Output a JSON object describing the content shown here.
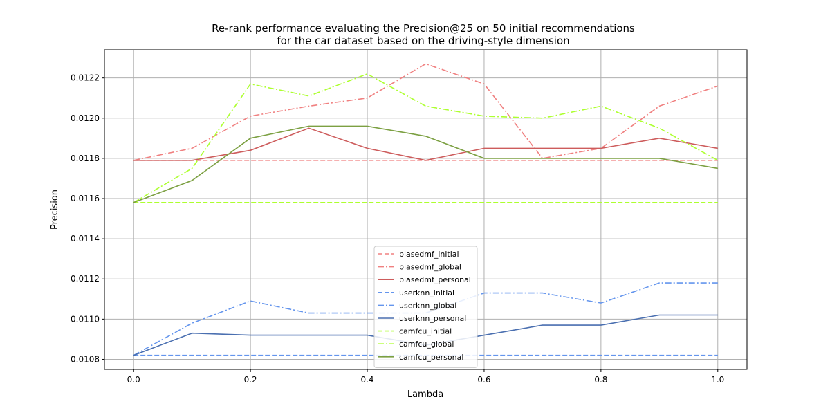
{
  "chart_data": {
    "type": "line",
    "title_lines": [
      "Re-rank performance evaluating the Precision@25 on 50 initial recommendations",
      "for the car dataset based on the driving-style dimension"
    ],
    "xlabel": "Lambda",
    "ylabel": "Precision",
    "xlim": [
      -0.05,
      1.05
    ],
    "ylim": [
      0.01075,
      0.01234
    ],
    "xticks": [
      0.0,
      0.2,
      0.4,
      0.6,
      0.8,
      1.0
    ],
    "xtick_labels": [
      "0.0",
      "0.2",
      "0.4",
      "0.6",
      "0.8",
      "1.0"
    ],
    "yticks": [
      0.0108,
      0.011,
      0.0112,
      0.0114,
      0.0116,
      0.0118,
      0.012,
      0.0122
    ],
    "ytick_labels": [
      "0.0108",
      "0.0110",
      "0.0112",
      "0.0114",
      "0.0116",
      "0.0118",
      "0.0120",
      "0.0122"
    ],
    "grid": true,
    "legend_position": "lower-center",
    "x": [
      0.0,
      0.1,
      0.2,
      0.3,
      0.4,
      0.5,
      0.6,
      0.7,
      0.8,
      0.9,
      1.0
    ],
    "series": [
      {
        "name": "biasedmf_initial",
        "color": "#f08080",
        "dash": "dashed",
        "values": [
          0.01179,
          0.01179,
          0.01179,
          0.01179,
          0.01179,
          0.01179,
          0.01179,
          0.01179,
          0.01179,
          0.01179,
          0.01179
        ]
      },
      {
        "name": "biasedmf_global",
        "color": "#f08080",
        "dash": "dashdot",
        "values": [
          0.01179,
          0.01185,
          0.01201,
          0.01206,
          0.0121,
          0.01227,
          0.01217,
          0.0118,
          0.01185,
          0.01206,
          0.01216
        ]
      },
      {
        "name": "biasedmf_personal",
        "color": "#cd5c5c",
        "dash": "solid",
        "values": [
          0.01179,
          0.01179,
          0.01184,
          0.01195,
          0.01185,
          0.01179,
          0.01185,
          0.01185,
          0.01185,
          0.0119,
          0.01185
        ]
      },
      {
        "name": "userknn_initial",
        "color": "#6495ed",
        "dash": "dashed",
        "values": [
          0.01082,
          0.01082,
          0.01082,
          0.01082,
          0.01082,
          0.01082,
          0.01082,
          0.01082,
          0.01082,
          0.01082,
          0.01082
        ]
      },
      {
        "name": "userknn_global",
        "color": "#6495ed",
        "dash": "dashdot",
        "values": [
          0.01082,
          0.01098,
          0.01109,
          0.01103,
          0.01103,
          0.01103,
          0.01113,
          0.01113,
          0.01108,
          0.01118,
          0.01118
        ]
      },
      {
        "name": "userknn_personal",
        "color": "#4a6fb0",
        "dash": "solid",
        "values": [
          0.01082,
          0.01093,
          0.01092,
          0.01092,
          0.01092,
          0.01087,
          0.01092,
          0.01097,
          0.01097,
          0.01102,
          0.01102
        ]
      },
      {
        "name": "camfcu_initial",
        "color": "#adff2f",
        "dash": "dashed",
        "values": [
          0.01158,
          0.01158,
          0.01158,
          0.01158,
          0.01158,
          0.01158,
          0.01158,
          0.01158,
          0.01158,
          0.01158,
          0.01158
        ]
      },
      {
        "name": "camfcu_global",
        "color": "#adff2f",
        "dash": "dashdot",
        "values": [
          0.01158,
          0.01175,
          0.01217,
          0.01211,
          0.01222,
          0.01206,
          0.01201,
          0.012,
          0.01206,
          0.01195,
          0.01179
        ]
      },
      {
        "name": "camfcu_personal",
        "color": "#7ca042",
        "dash": "solid",
        "values": [
          0.01158,
          0.01169,
          0.0119,
          0.01196,
          0.01196,
          0.01191,
          0.0118,
          0.0118,
          0.0118,
          0.0118,
          0.01175
        ]
      }
    ]
  }
}
